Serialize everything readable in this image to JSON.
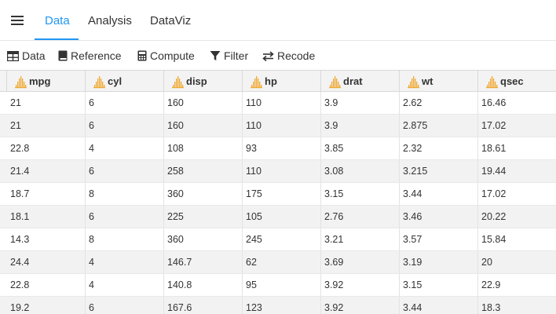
{
  "nav": {
    "menu_icon": "hamburger-menu-icon",
    "tabs": [
      {
        "label": "Data",
        "active": true
      },
      {
        "label": "Analysis",
        "active": false
      },
      {
        "label": "DataViz",
        "active": false
      }
    ],
    "accent_color": "#2196f3"
  },
  "toolbar": {
    "data_label": "Data",
    "reference_label": "Reference",
    "compute_label": "Compute",
    "filter_label": "Filter",
    "recode_label": "Recode"
  },
  "table": {
    "columns": [
      "mpg",
      "cyl",
      "disp",
      "hp",
      "drat",
      "wt",
      "qsec"
    ],
    "column_icon": "continuous-variable-icon",
    "rows": [
      [
        "21",
        "6",
        "160",
        "110",
        "3.9",
        "2.62",
        "16.46"
      ],
      [
        "21",
        "6",
        "160",
        "110",
        "3.9",
        "2.875",
        "17.02"
      ],
      [
        "22.8",
        "4",
        "108",
        "93",
        "3.85",
        "2.32",
        "18.61"
      ],
      [
        "21.4",
        "6",
        "258",
        "110",
        "3.08",
        "3.215",
        "19.44"
      ],
      [
        "18.7",
        "8",
        "360",
        "175",
        "3.15",
        "3.44",
        "17.02"
      ],
      [
        "18.1",
        "6",
        "225",
        "105",
        "2.76",
        "3.46",
        "20.22"
      ],
      [
        "14.3",
        "8",
        "360",
        "245",
        "3.21",
        "3.57",
        "15.84"
      ],
      [
        "24.4",
        "4",
        "146.7",
        "62",
        "3.69",
        "3.19",
        "20"
      ],
      [
        "22.8",
        "4",
        "140.8",
        "95",
        "3.92",
        "3.15",
        "22.9"
      ],
      [
        "19.2",
        "6",
        "167.6",
        "123",
        "3.92",
        "3.44",
        "18.3"
      ]
    ]
  }
}
